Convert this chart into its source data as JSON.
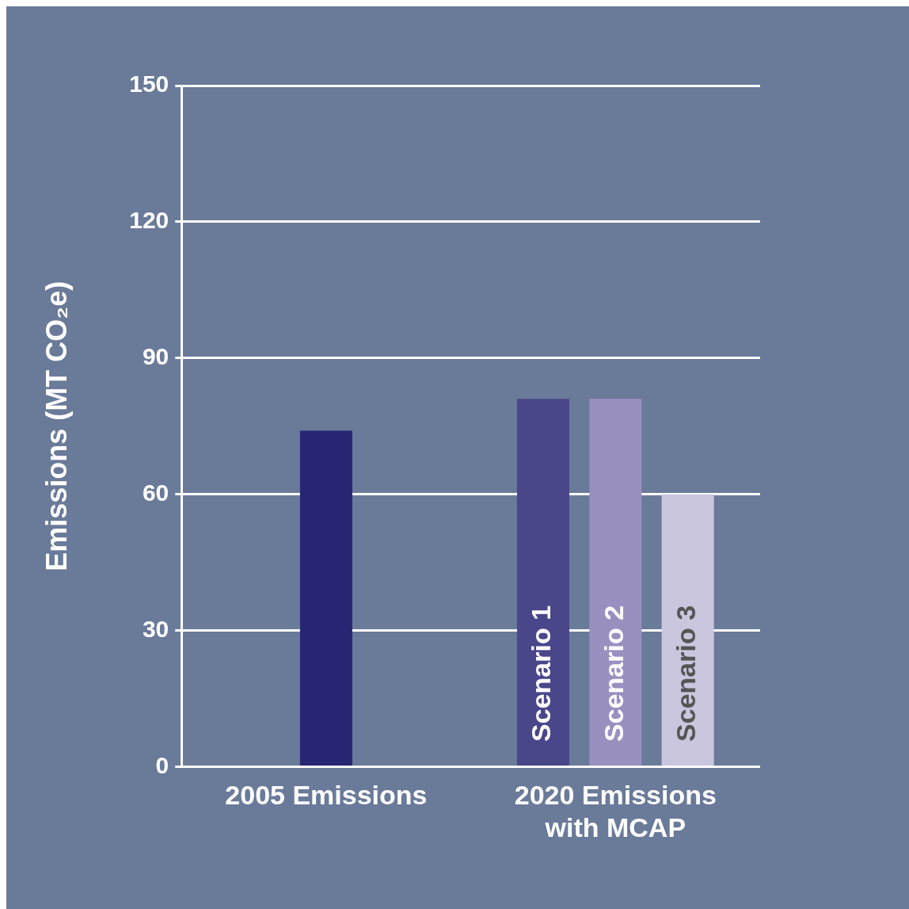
{
  "chart_data": {
    "type": "bar",
    "ylabel": "Emissions (MT CO₂e)",
    "categories": [
      "2005 Emissions",
      "2020 Emissions with MCAP"
    ],
    "series": [
      {
        "color": "#262673",
        "values": [
          74,
          null
        ]
      },
      {
        "name": "Scenario 1",
        "color": "#4a468a",
        "values": [
          null,
          81
        ]
      },
      {
        "name": "Scenario 2",
        "color": "#9a90c0",
        "values": [
          null,
          81
        ]
      },
      {
        "name": "Scenario 3",
        "color": "#cac6de",
        "values": [
          null,
          60
        ]
      }
    ],
    "ylim": [
      0,
      150
    ],
    "yticks": [
      0,
      30,
      60,
      90,
      120,
      150
    ],
    "grid": "y",
    "legend": false
  }
}
